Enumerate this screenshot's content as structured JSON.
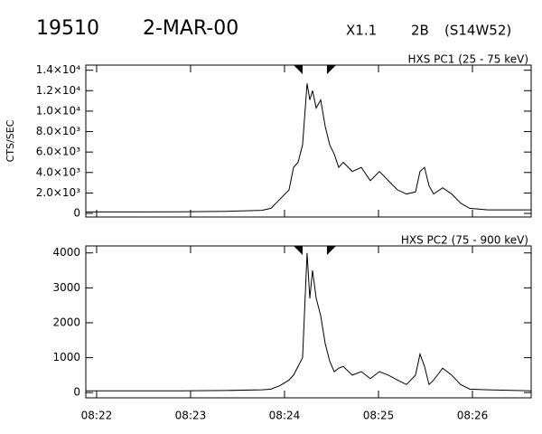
{
  "header": {
    "id": "19510",
    "date": "2-MAR-00",
    "class": "X1.1",
    "optical": "2B",
    "location": "(S14W52)"
  },
  "chart_data": [
    {
      "type": "line",
      "title": "HXS PC1 (25 - 75 keV)",
      "ylabel": "CTS/SEC",
      "color": "#000000",
      "x": [
        501.885,
        502.413,
        502.894,
        503.375,
        503.76,
        503.856,
        503.952,
        504.048,
        504.096,
        504.144,
        504.192,
        504.24,
        504.269,
        504.298,
        504.337,
        504.385,
        504.433,
        504.481,
        504.529,
        504.577,
        504.625,
        504.721,
        504.817,
        504.913,
        505.01,
        505.106,
        505.202,
        505.298,
        505.394,
        505.442,
        505.49,
        505.538,
        505.587,
        505.683,
        505.779,
        505.875,
        505.971,
        506.163,
        506.625
      ],
      "values": [
        150,
        150,
        160,
        200,
        300,
        500,
        1400,
        2300,
        4500,
        5000,
        6700,
        12700,
        11100,
        12000,
        10300,
        11100,
        8500,
        6700,
        5800,
        4500,
        5000,
        4100,
        4500,
        3200,
        4100,
        3200,
        2300,
        1900,
        2100,
        4100,
        4500,
        2700,
        1900,
        2500,
        1900,
        1000,
        500,
        350,
        350
      ],
      "xlim": [
        501.885,
        506.625
      ],
      "ylim": [
        -350,
        14500
      ],
      "yticks": [
        0,
        {
          "value": 2000,
          "label": "2.0×10³"
        },
        {
          "value": 4000,
          "label": "4.0×10³"
        },
        {
          "value": 6000,
          "label": "6.0×10³"
        },
        {
          "value": 8000,
          "label": "8.0×10³"
        },
        {
          "value": 10000,
          "label": "1.0×10⁴"
        },
        {
          "value": 12000,
          "label": "1.2×10⁴"
        },
        {
          "value": 14000,
          "label": "1.4×10⁴"
        }
      ],
      "markers": [
        504.173,
        504.471
      ]
    },
    {
      "type": "line",
      "title": "HXS PC2 (75 - 900 keV)",
      "color": "#000000",
      "x": [
        501.885,
        502.413,
        502.894,
        503.375,
        503.76,
        503.856,
        503.952,
        504.048,
        504.096,
        504.144,
        504.192,
        504.24,
        504.269,
        504.298,
        504.337,
        504.385,
        504.433,
        504.481,
        504.529,
        504.577,
        504.625,
        504.721,
        504.817,
        504.913,
        505.01,
        505.106,
        505.202,
        505.298,
        505.394,
        505.442,
        505.49,
        505.538,
        505.587,
        505.683,
        505.779,
        505.875,
        505.971,
        506.163,
        506.625
      ],
      "values": [
        50,
        50,
        50,
        60,
        80,
        100,
        200,
        360,
        500,
        750,
        1000,
        4000,
        2700,
        3500,
        2700,
        2200,
        1400,
        900,
        600,
        700,
        750,
        500,
        600,
        400,
        600,
        500,
        360,
        230,
        500,
        1100,
        750,
        230,
        360,
        700,
        500,
        230,
        100,
        80,
        50
      ],
      "xlim": [
        501.885,
        506.625
      ],
      "ylim": [
        -150,
        4200
      ],
      "yticks": [
        0,
        1000,
        2000,
        3000,
        4000
      ],
      "xticks": [
        {
          "value": 502,
          "label": "08:22"
        },
        {
          "value": 503,
          "label": "08:23"
        },
        {
          "value": 504,
          "label": "08:24"
        },
        {
          "value": 505,
          "label": "08:25"
        },
        {
          "value": 506,
          "label": "08:26"
        }
      ],
      "markers": [
        504.173,
        504.471
      ]
    }
  ]
}
